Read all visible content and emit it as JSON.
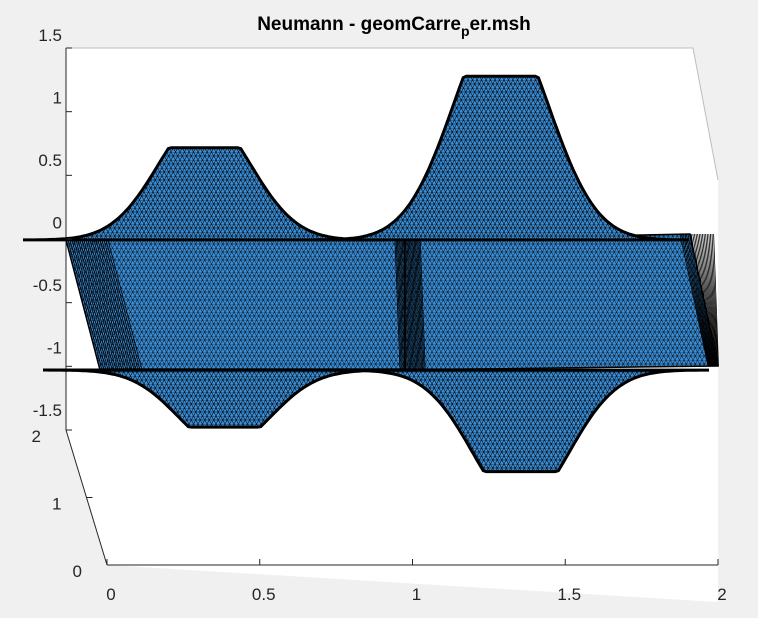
{
  "chart_data": {
    "type": "surface",
    "title": {
      "main": "Neumann - geomCarre",
      "subscript": "p",
      "suffix": "er.msh"
    },
    "surface_color": "#3b8fd9",
    "edge_color": "#000000",
    "axis_color": "#262626",
    "x_ticks": [
      "0",
      "0.5",
      "1",
      "1.5",
      "2"
    ],
    "y_ticks": [
      "0",
      "1",
      "2"
    ],
    "z_ticks": [
      "1.5",
      "1",
      "0.5",
      "0",
      "-0.5",
      "-1",
      "-1.5"
    ],
    "xlim": [
      0,
      2
    ],
    "ylim": [
      0,
      2
    ],
    "zlim": [
      -1.5,
      1.5
    ],
    "bumps": [
      {
        "x_center": 0.45,
        "amplitude": 0.72
      },
      {
        "x_center": 1.42,
        "amplitude": 1.28
      }
    ]
  }
}
